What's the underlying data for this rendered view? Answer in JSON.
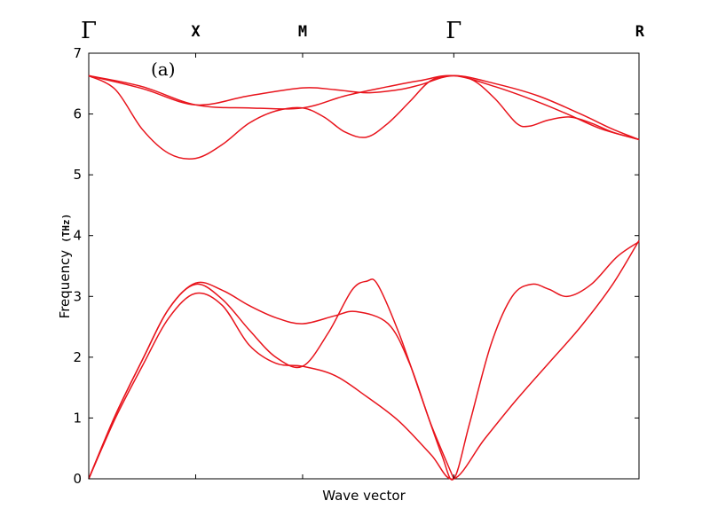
{
  "chart_data": {
    "type": "line",
    "panel_label": "(a)",
    "xlabel": "Wave vector",
    "ylabel": "Frequency",
    "ylabel_unit": "(THz)",
    "ylim": [
      0,
      7
    ],
    "y_ticks": [
      "0",
      "1",
      "2",
      "3",
      "4",
      "5",
      "6",
      "7"
    ],
    "grid": false,
    "high_symmetry_points": [
      {
        "label": "Γ",
        "x": 0.0,
        "style": "serif"
      },
      {
        "label": "X",
        "x": 0.5,
        "style": "mono"
      },
      {
        "label": "M",
        "x": 1.0,
        "style": "mono"
      },
      {
        "label": "Γ",
        "x": 1.707,
        "style": "serif"
      },
      {
        "label": "R",
        "x": 2.573,
        "style": "mono"
      }
    ],
    "xlim": [
      0,
      2.573
    ],
    "series": [
      {
        "values": [
          [
            0,
            0
          ],
          [
            0.125,
            1.0
          ],
          [
            0.25,
            1.85
          ],
          [
            0.375,
            2.65
          ],
          [
            0.5,
            3.05
          ],
          [
            0.625,
            2.85
          ],
          [
            0.75,
            2.2
          ],
          [
            0.875,
            1.9
          ],
          [
            1.0,
            1.85
          ],
          [
            1.15,
            1.7
          ],
          [
            1.3,
            1.35
          ],
          [
            1.45,
            0.95
          ],
          [
            1.6,
            0.4
          ],
          [
            1.707,
            0.0
          ],
          [
            1.85,
            0.65
          ],
          [
            2.0,
            1.3
          ],
          [
            2.15,
            1.9
          ],
          [
            2.3,
            2.5
          ],
          [
            2.45,
            3.2
          ],
          [
            2.573,
            3.92
          ]
        ]
      },
      {
        "values": [
          [
            0,
            0
          ],
          [
            0.125,
            1.05
          ],
          [
            0.25,
            1.95
          ],
          [
            0.375,
            2.8
          ],
          [
            0.5,
            3.2
          ],
          [
            0.625,
            2.95
          ],
          [
            0.75,
            2.45
          ],
          [
            0.875,
            2.0
          ],
          [
            1.0,
            1.85
          ],
          [
            1.12,
            2.4
          ],
          [
            1.23,
            3.1
          ],
          [
            1.3,
            3.25
          ],
          [
            1.35,
            3.2
          ],
          [
            1.45,
            2.4
          ],
          [
            1.55,
            1.4
          ],
          [
            1.65,
            0.4
          ],
          [
            1.707,
            0.0
          ],
          [
            1.78,
            0.9
          ],
          [
            1.88,
            2.2
          ],
          [
            1.98,
            3.0
          ],
          [
            2.07,
            3.2
          ],
          [
            2.15,
            3.12
          ],
          [
            2.24,
            3.0
          ],
          [
            2.35,
            3.2
          ],
          [
            2.47,
            3.65
          ],
          [
            2.573,
            3.9
          ]
        ]
      },
      {
        "values": [
          [
            0,
            0
          ],
          [
            0.125,
            1.05
          ],
          [
            0.25,
            1.95
          ],
          [
            0.375,
            2.8
          ],
          [
            0.5,
            3.22
          ],
          [
            0.625,
            3.1
          ],
          [
            0.75,
            2.85
          ],
          [
            0.875,
            2.65
          ],
          [
            1.0,
            2.55
          ],
          [
            1.15,
            2.68
          ],
          [
            1.25,
            2.75
          ],
          [
            1.4,
            2.55
          ],
          [
            1.5,
            1.9
          ],
          [
            1.6,
            0.9
          ],
          [
            1.707,
            0.0
          ]
        ]
      },
      {
        "values": [
          [
            0,
            6.63
          ],
          [
            0.125,
            6.4
          ],
          [
            0.25,
            5.75
          ],
          [
            0.375,
            5.35
          ],
          [
            0.5,
            5.27
          ],
          [
            0.625,
            5.5
          ],
          [
            0.75,
            5.85
          ],
          [
            0.875,
            6.05
          ],
          [
            1.0,
            6.1
          ],
          [
            1.1,
            5.95
          ],
          [
            1.2,
            5.7
          ],
          [
            1.3,
            5.62
          ],
          [
            1.4,
            5.85
          ],
          [
            1.5,
            6.2
          ],
          [
            1.6,
            6.55
          ],
          [
            1.707,
            6.63
          ],
          [
            1.8,
            6.55
          ],
          [
            1.9,
            6.25
          ],
          [
            2.0,
            5.85
          ],
          [
            2.06,
            5.8
          ],
          [
            2.15,
            5.9
          ],
          [
            2.25,
            5.95
          ],
          [
            2.35,
            5.85
          ],
          [
            2.45,
            5.7
          ],
          [
            2.573,
            5.58
          ]
        ]
      },
      {
        "values": [
          [
            0,
            6.63
          ],
          [
            0.25,
            6.45
          ],
          [
            0.5,
            6.15
          ],
          [
            0.75,
            6.1
          ],
          [
            1.0,
            6.1
          ],
          [
            1.2,
            6.3
          ],
          [
            1.4,
            6.45
          ],
          [
            1.55,
            6.55
          ],
          [
            1.707,
            6.63
          ],
          [
            1.9,
            6.45
          ],
          [
            2.1,
            6.2
          ],
          [
            2.25,
            5.98
          ],
          [
            2.4,
            5.75
          ],
          [
            2.573,
            5.58
          ]
        ]
      },
      {
        "values": [
          [
            0,
            6.63
          ],
          [
            0.25,
            6.42
          ],
          [
            0.5,
            6.15
          ],
          [
            0.75,
            6.3
          ],
          [
            1.0,
            6.43
          ],
          [
            1.15,
            6.4
          ],
          [
            1.3,
            6.35
          ],
          [
            1.45,
            6.4
          ],
          [
            1.55,
            6.48
          ],
          [
            1.707,
            6.63
          ],
          [
            1.9,
            6.5
          ],
          [
            2.1,
            6.3
          ],
          [
            2.3,
            6.0
          ],
          [
            2.45,
            5.75
          ],
          [
            2.573,
            5.58
          ]
        ]
      }
    ]
  }
}
